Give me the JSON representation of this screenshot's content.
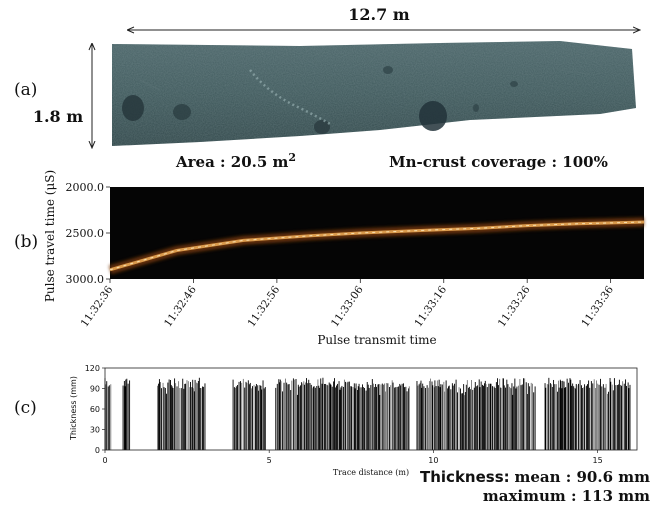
{
  "panel_a": {
    "label": "(a)",
    "width_text": "12.7 m",
    "height_text": "1.8 m",
    "area_text": "Area : 20.5 m",
    "area_sup": "2",
    "coverage_text": "Mn-crust coverage : 100%"
  },
  "panel_b": {
    "label": "(b)",
    "ylabel": "Pulse travel time (μS)",
    "xlabel": "Pulse transmit time",
    "yticks": [
      "2000.0",
      "2500.0",
      "3000.0"
    ],
    "xticks": [
      "11:32:36",
      "11:32:46",
      "11:32:56",
      "11:33:06",
      "11:33:16",
      "11:33:26",
      "11:33:36"
    ]
  },
  "panel_c": {
    "label": "(c)",
    "ylabel": "Thickness (mm)",
    "xlabel": "Trace distance (m)",
    "yticks": [
      "0",
      "30",
      "60",
      "90",
      "120"
    ],
    "xticks": [
      "0",
      "5",
      "10",
      "15"
    ]
  },
  "stats": {
    "label": "Thickness:",
    "mean_text": "mean : 90.6 mm",
    "max_text": "maximum : 113 mm"
  },
  "colors": {
    "sonar_bg": "#050505",
    "sonar_line": "#e0a050",
    "photo": "#3f5a5d",
    "bars": "#000000"
  },
  "chart_data": [
    {
      "type": "heatmap",
      "xlabel": "Pulse transmit time",
      "ylabel": "Pulse travel time (μS)",
      "x_range": [
        "11:32:36",
        "11:33:40"
      ],
      "y_range": [
        2000,
        3000
      ],
      "interface_trace": {
        "t_seconds": [
          0,
          8,
          16,
          24,
          30,
          38,
          44,
          50,
          56,
          64
        ],
        "travel_time": [
          2900,
          2690,
          2580,
          2530,
          2500,
          2470,
          2450,
          2420,
          2400,
          2380
        ]
      }
    },
    {
      "type": "bar",
      "xlabel": "Trace distance (m)",
      "ylabel": "Thickness (mm)",
      "xlim": [
        0,
        16.2
      ],
      "ylim": [
        0,
        120
      ],
      "mean": 90.6,
      "maximum": 113,
      "segments": [
        {
          "start": 0.0,
          "end": 0.2
        },
        {
          "start": 0.55,
          "end": 0.75
        },
        {
          "start": 1.6,
          "end": 3.05
        },
        {
          "start": 3.9,
          "end": 4.9
        },
        {
          "start": 5.2,
          "end": 9.3
        },
        {
          "start": 9.5,
          "end": 13.1
        },
        {
          "start": 13.4,
          "end": 16.0
        }
      ]
    }
  ]
}
